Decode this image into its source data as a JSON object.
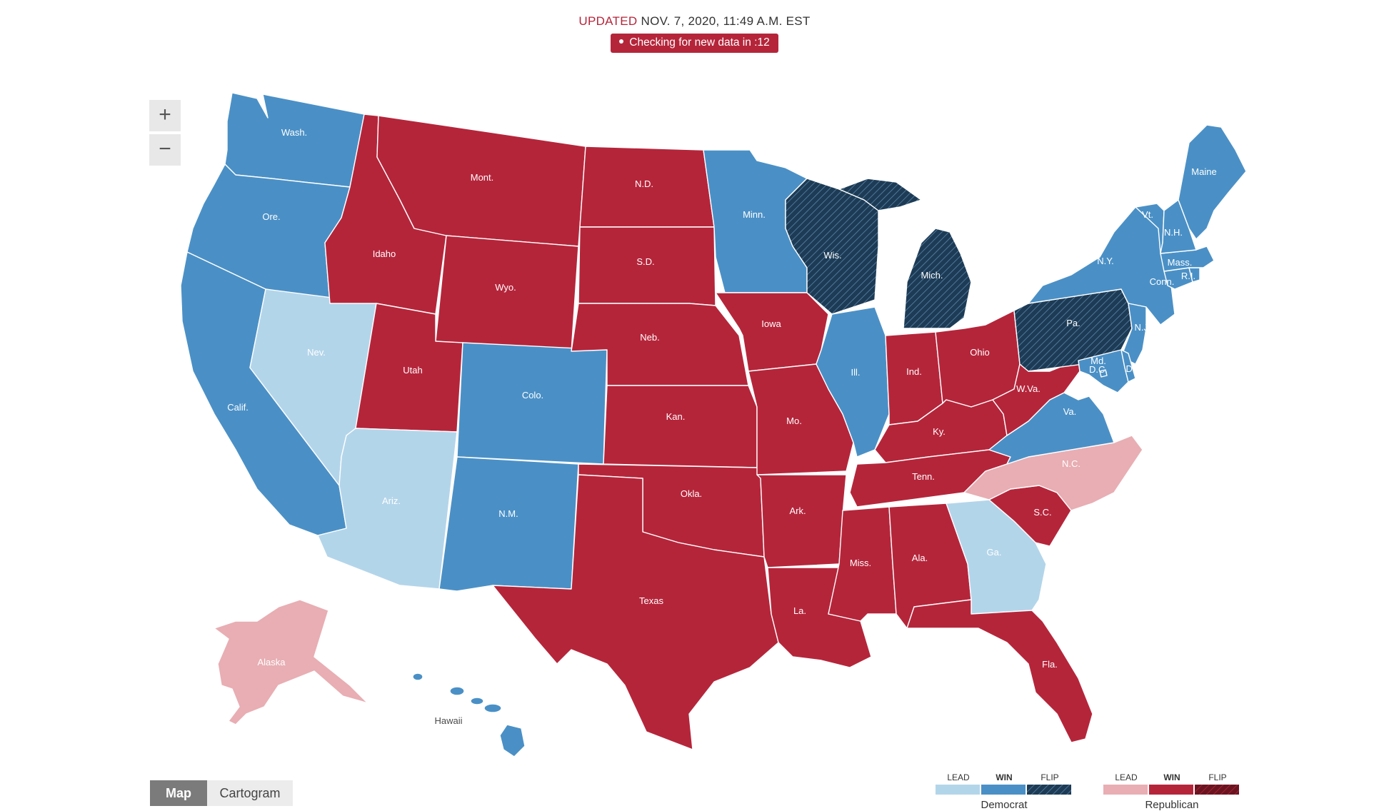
{
  "header": {
    "updated_label": "UPDATED",
    "updated_time": "NOV. 7, 2020, 11:49 A.M. EST",
    "status_text": "Checking for new data in :12"
  },
  "zoom": {
    "in_label": "+",
    "out_label": "−"
  },
  "view_toggle": {
    "map_label": "Map",
    "cartogram_label": "Cartogram",
    "active": "Map"
  },
  "colors": {
    "dem_lead": "#b3d5ea",
    "dem_win": "#4a90c6",
    "dem_flip": "#1d3b55",
    "rep_lead": "#e8aeb3",
    "rep_win": "#b5253a",
    "rep_flip": "#6b1420"
  },
  "legend": {
    "democrat": {
      "name": "Democrat",
      "labels": [
        "LEAD",
        "WIN",
        "FLIP"
      ]
    },
    "republican": {
      "name": "Republican",
      "labels": [
        "LEAD",
        "WIN",
        "FLIP"
      ]
    }
  },
  "states": [
    {
      "abbr": "Wash.",
      "status": "dem_win"
    },
    {
      "abbr": "Ore.",
      "status": "dem_win"
    },
    {
      "abbr": "Calif.",
      "status": "dem_win"
    },
    {
      "abbr": "Nev.",
      "status": "dem_lead"
    },
    {
      "abbr": "Idaho",
      "status": "rep_win"
    },
    {
      "abbr": "Mont.",
      "status": "rep_win"
    },
    {
      "abbr": "Wyo.",
      "status": "rep_win"
    },
    {
      "abbr": "Utah",
      "status": "rep_win"
    },
    {
      "abbr": "Colo.",
      "status": "dem_win"
    },
    {
      "abbr": "Ariz.",
      "status": "dem_lead"
    },
    {
      "abbr": "N.M.",
      "status": "dem_win"
    },
    {
      "abbr": "N.D.",
      "status": "rep_win"
    },
    {
      "abbr": "S.D.",
      "status": "rep_win"
    },
    {
      "abbr": "Neb.",
      "status": "rep_win"
    },
    {
      "abbr": "Kan.",
      "status": "rep_win"
    },
    {
      "abbr": "Okla.",
      "status": "rep_win"
    },
    {
      "abbr": "Texas",
      "status": "rep_win"
    },
    {
      "abbr": "Minn.",
      "status": "dem_win"
    },
    {
      "abbr": "Iowa",
      "status": "rep_win"
    },
    {
      "abbr": "Mo.",
      "status": "rep_win"
    },
    {
      "abbr": "Ark.",
      "status": "rep_win"
    },
    {
      "abbr": "La.",
      "status": "rep_win"
    },
    {
      "abbr": "Wis.",
      "status": "dem_flip"
    },
    {
      "abbr": "Ill.",
      "status": "dem_win"
    },
    {
      "abbr": "Mich.",
      "status": "dem_flip"
    },
    {
      "abbr": "Ind.",
      "status": "rep_win"
    },
    {
      "abbr": "Ohio",
      "status": "rep_win"
    },
    {
      "abbr": "Ky.",
      "status": "rep_win"
    },
    {
      "abbr": "Tenn.",
      "status": "rep_win"
    },
    {
      "abbr": "Miss.",
      "status": "rep_win"
    },
    {
      "abbr": "Ala.",
      "status": "rep_win"
    },
    {
      "abbr": "Ga.",
      "status": "dem_lead"
    },
    {
      "abbr": "Fla.",
      "status": "rep_win"
    },
    {
      "abbr": "S.C.",
      "status": "rep_win"
    },
    {
      "abbr": "N.C.",
      "status": "rep_lead"
    },
    {
      "abbr": "Va.",
      "status": "dem_win"
    },
    {
      "abbr": "W.Va.",
      "status": "rep_win"
    },
    {
      "abbr": "Pa.",
      "status": "dem_flip"
    },
    {
      "abbr": "N.Y.",
      "status": "dem_win"
    },
    {
      "abbr": "Md.",
      "status": "dem_win"
    },
    {
      "abbr": "D.C.",
      "status": "dem_win"
    },
    {
      "abbr": "Del.",
      "status": "dem_win"
    },
    {
      "abbr": "N.J.",
      "status": "dem_win"
    },
    {
      "abbr": "Conn.",
      "status": "dem_win"
    },
    {
      "abbr": "R.I.",
      "status": "dem_win"
    },
    {
      "abbr": "Mass.",
      "status": "dem_win"
    },
    {
      "abbr": "Vt.",
      "status": "dem_win"
    },
    {
      "abbr": "N.H.",
      "status": "dem_win"
    },
    {
      "abbr": "Maine",
      "status": "dem_win"
    },
    {
      "abbr": "Alaska",
      "status": "rep_lead"
    },
    {
      "abbr": "Hawaii",
      "status": "dem_win"
    }
  ]
}
